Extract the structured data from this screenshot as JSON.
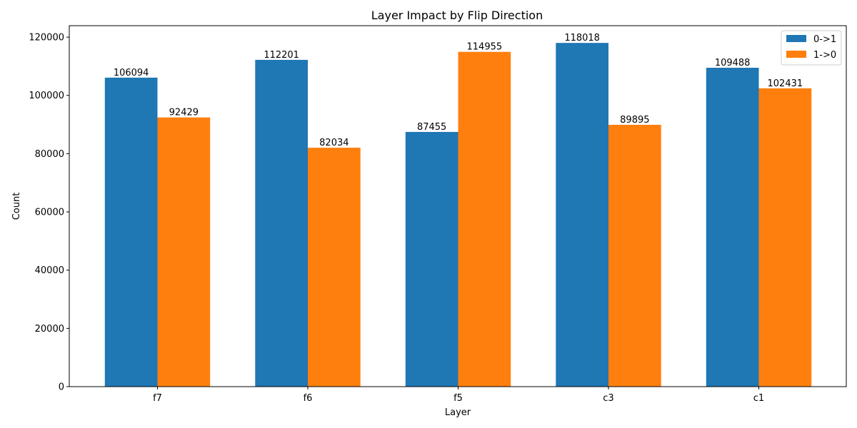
{
  "chart_data": {
    "type": "bar",
    "title": "Layer Impact by Flip Direction",
    "xlabel": "Layer",
    "ylabel": "Count",
    "categories": [
      "f7",
      "f6",
      "f5",
      "c3",
      "c1"
    ],
    "series": [
      {
        "name": "0->1",
        "color": "#1f77b4",
        "values": [
          106094,
          112201,
          87455,
          118018,
          109488
        ]
      },
      {
        "name": "1->0",
        "color": "#ff7f0e",
        "values": [
          92429,
          82034,
          114955,
          89895,
          102431
        ]
      }
    ],
    "ylim": [
      0,
      123937
    ],
    "yticks": [
      0,
      20000,
      40000,
      60000,
      80000,
      100000,
      120000
    ],
    "legend_position": "top-right",
    "grid": false
  }
}
